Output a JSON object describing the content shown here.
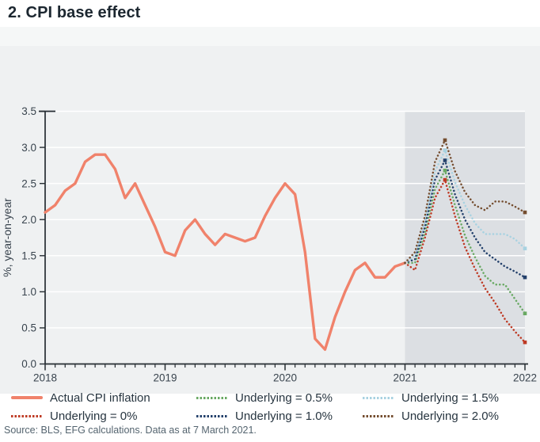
{
  "page": {
    "title": "2. CPI base effect",
    "source": "Source: BLS, EFG calculations. Data as at 7 March 2021."
  },
  "colors": {
    "panel": "#eff1f2",
    "header_band": "#f5f7f7",
    "forecast_shade": "#dcdfe3",
    "gridline": "#ffffff",
    "axis": "#262d33",
    "tick_text": "#39444e",
    "legend_text": "#273540",
    "source_text": "#54646f"
  },
  "chart_data": {
    "type": "line",
    "title": "2. CPI base effect",
    "xlabel": "",
    "ylabel": "%, year-on-year",
    "ylim": [
      0,
      3.5
    ],
    "y_ticks": [
      "0.0",
      "0.5",
      "1.0",
      "1.5",
      "2.0",
      "2.5",
      "3.0",
      "3.5"
    ],
    "x_ticks": [
      "2018",
      "2019",
      "2020",
      "2021",
      "2022"
    ],
    "x_unit": "monthly, Jan 2018 - Jan 2022",
    "total_months": 48,
    "forecast_start_month": 36,
    "grid": "horizontal white gridlines, shaded forecast region from 2021",
    "legend_position": "bottom",
    "legend_order": [
      0,
      2,
      4,
      1,
      3,
      5
    ],
    "series": [
      {
        "name": "Actual CPI inflation",
        "style": "solid",
        "color": "#f0826b",
        "start_month": 0,
        "values": [
          2.1,
          2.2,
          2.4,
          2.5,
          2.8,
          2.9,
          2.9,
          2.7,
          2.3,
          2.5,
          2.2,
          1.9,
          1.55,
          1.5,
          1.85,
          2.0,
          1.8,
          1.65,
          1.8,
          1.75,
          1.7,
          1.75,
          2.05,
          2.3,
          2.5,
          2.35,
          1.55,
          0.35,
          0.2,
          0.65,
          1.0,
          1.3,
          1.4,
          1.2,
          1.2,
          1.35,
          1.4
        ]
      },
      {
        "name": "Underlying = 0%",
        "style": "dotted",
        "color": "#be3a24",
        "start_month": 36,
        "values": [
          1.4,
          1.3,
          1.75,
          2.3,
          2.55,
          2.05,
          1.62,
          1.32,
          1.05,
          0.85,
          0.62,
          0.45,
          0.3
        ]
      },
      {
        "name": "Underlying = 0.5%",
        "style": "dotted",
        "color": "#69a963",
        "start_month": 36,
        "values": [
          1.4,
          1.4,
          1.82,
          2.42,
          2.68,
          2.2,
          1.78,
          1.48,
          1.22,
          1.1,
          1.1,
          0.9,
          0.7
        ]
      },
      {
        "name": "Underlying = 1.0%",
        "style": "dotted",
        "color": "#23406b",
        "start_month": 36,
        "values": [
          1.4,
          1.45,
          1.9,
          2.55,
          2.82,
          2.35,
          2.0,
          1.75,
          1.55,
          1.45,
          1.35,
          1.28,
          1.2
        ]
      },
      {
        "name": "Underlying = 1.5%",
        "style": "dotted",
        "color": "#a8d2e1",
        "start_month": 36,
        "values": [
          1.4,
          1.5,
          1.97,
          2.67,
          2.96,
          2.52,
          2.2,
          1.95,
          1.8,
          1.8,
          1.8,
          1.73,
          1.6
        ]
      },
      {
        "name": "Underlying = 2.0%",
        "style": "dotted",
        "color": "#744d2f",
        "start_month": 36,
        "values": [
          1.4,
          1.55,
          2.05,
          2.8,
          3.1,
          2.67,
          2.38,
          2.2,
          2.13,
          2.25,
          2.25,
          2.18,
          2.1
        ]
      }
    ]
  }
}
